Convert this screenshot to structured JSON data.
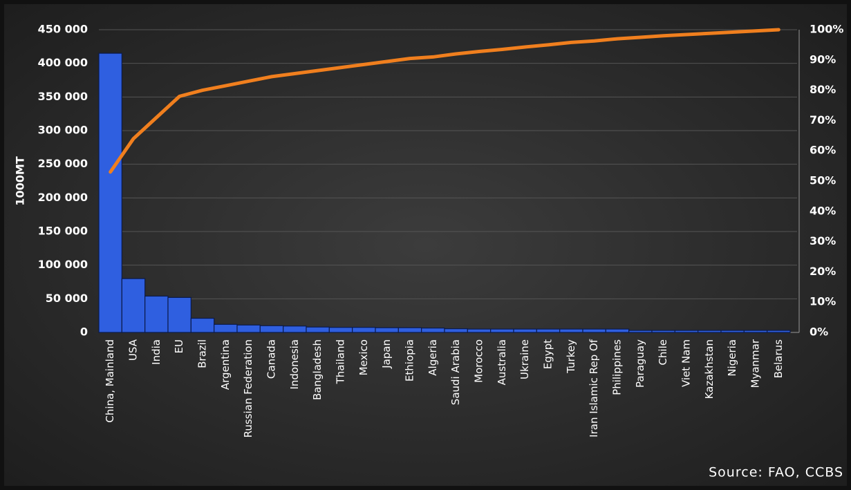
{
  "chart_data": {
    "type": "pareto",
    "y_label": "1000MT",
    "source": "Source: FAO, CCBS",
    "categories": [
      "China, Mainland",
      "USA",
      "India",
      "EU",
      "Brazil",
      "Argentina",
      "Russian Federation",
      "Canada",
      "Indonesia",
      "Bangladesh",
      "Thailand",
      "Mexico",
      "Japan",
      "Ethiopia",
      "Algeria",
      "Saudi Arabia",
      "Morocco",
      "Australia",
      "Ukraine",
      "Egypt",
      "Turkey",
      "Iran Islamic Rep Of",
      "Philippines",
      "Paraguay",
      "Chile",
      "Viet Nam",
      "Kazakhstan",
      "Nigeria",
      "Myanmar",
      "Belarus"
    ],
    "series": [
      {
        "type": "bar",
        "color": "#2f5fe0",
        "values": [
          415000,
          80000,
          54000,
          52000,
          21000,
          12000,
          11000,
          10000,
          9500,
          8000,
          7500,
          7500,
          7000,
          7000,
          6500,
          5500,
          5000,
          5000,
          5000,
          5000,
          5000,
          5000,
          5000,
          3000,
          3000,
          3000,
          3000,
          3000,
          3000,
          3000
        ]
      },
      {
        "type": "line",
        "axis": "y2",
        "color": "#f07f1e",
        "values": [
          53,
          64,
          71,
          78,
          80,
          81.5,
          83,
          84.5,
          85.5,
          86.5,
          87.5,
          88.5,
          89.5,
          90.5,
          91,
          92,
          92.8,
          93.5,
          94.3,
          95,
          95.8,
          96.3,
          97,
          97.5,
          98,
          98.4,
          98.8,
          99.2,
          99.6,
          100
        ]
      }
    ],
    "ylim": [
      0,
      450000
    ],
    "yticks": [
      0,
      {
        "value": 50000,
        "label": "50 000"
      },
      {
        "value": 100000,
        "label": "100 000"
      },
      {
        "value": 150000,
        "label": "150 000"
      },
      {
        "value": 200000,
        "label": "200 000"
      },
      {
        "value": 250000,
        "label": "250 000"
      },
      {
        "value": 300000,
        "label": "300 000"
      },
      {
        "value": 350000,
        "label": "350 000"
      },
      {
        "value": 400000,
        "label": "400 000"
      },
      {
        "value": 450000,
        "label": "450 000"
      }
    ],
    "y2lim": [
      0,
      100
    ],
    "y2ticks": [
      {
        "value": 0,
        "label": "0%"
      },
      {
        "value": 10,
        "label": "10%"
      },
      {
        "value": 20,
        "label": "20%"
      },
      {
        "value": 30,
        "label": "30%"
      },
      {
        "value": 40,
        "label": "40%"
      },
      {
        "value": 50,
        "label": "50%"
      },
      {
        "value": 60,
        "label": "60%"
      },
      {
        "value": 70,
        "label": "70%"
      },
      {
        "value": 80,
        "label": "80%"
      },
      {
        "value": 90,
        "label": "90%"
      },
      {
        "value": 100,
        "label": "100%"
      }
    ],
    "grid": true
  }
}
